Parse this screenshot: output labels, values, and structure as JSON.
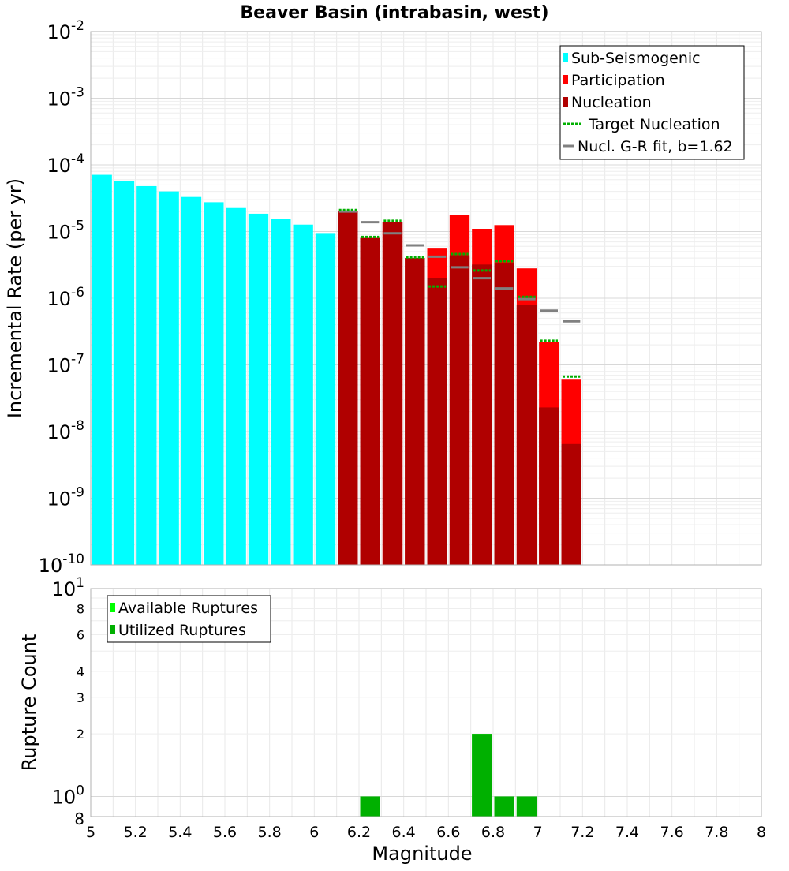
{
  "chart_data": [
    {
      "type": "bar",
      "title": "Beaver Basin (intrabasin, west)",
      "xlabel": "",
      "ylabel": "Incremental Rate (per yr)",
      "xlim": [
        5,
        8
      ],
      "ylim": [
        1e-10,
        0.01
      ],
      "yscale": "log",
      "bin_width": 0.1,
      "grid": true,
      "legend_position": "top-right",
      "y_ticks": [
        {
          "base": "10",
          "exp": "-10"
        },
        {
          "base": "10",
          "exp": "-9"
        },
        {
          "base": "10",
          "exp": "-8"
        },
        {
          "base": "10",
          "exp": "-7"
        },
        {
          "base": "10",
          "exp": "-6"
        },
        {
          "base": "10",
          "exp": "-5"
        },
        {
          "base": "10",
          "exp": "-4"
        },
        {
          "base": "10",
          "exp": "-3"
        },
        {
          "base": "10",
          "exp": "-2"
        }
      ],
      "legend": [
        {
          "label": "Sub-Seismogenic",
          "kind": "bar",
          "color": "#00ffff"
        },
        {
          "label": "Participation",
          "kind": "bar",
          "color": "#ff0000"
        },
        {
          "label": "Nucleation",
          "kind": "bar",
          "color": "#b00000"
        },
        {
          "label": "Target Nucleation",
          "kind": "dotted",
          "color": "#00b000"
        },
        {
          "label": "Nucl. G-R fit, b=1.62",
          "kind": "line",
          "color": "#808080"
        }
      ],
      "series": [
        {
          "name": "Sub-Seismogenic",
          "color": "#00ffff",
          "x": [
            5.05,
            5.15,
            5.25,
            5.35,
            5.45,
            5.55,
            5.65,
            5.75,
            5.85,
            5.95,
            6.05
          ],
          "values": [
            7.1e-05,
            5.8e-05,
            4.8e-05,
            4e-05,
            3.3e-05,
            2.75e-05,
            2.25e-05,
            1.85e-05,
            1.55e-05,
            1.27e-05,
            9.5e-06
          ]
        },
        {
          "name": "Participation",
          "color": "#ff0000",
          "x": [
            6.15,
            6.25,
            6.35,
            6.45,
            6.55,
            6.65,
            6.75,
            6.85,
            6.95,
            7.05,
            7.15
          ],
          "values": [
            2e-05,
            8e-06,
            1.4e-05,
            4e-06,
            5.7e-06,
            1.75e-05,
            1.1e-05,
            1.25e-05,
            2.8e-06,
            2.2e-07,
            6e-08
          ]
        },
        {
          "name": "Nucleation",
          "color": "#b00000",
          "x": [
            6.15,
            6.25,
            6.35,
            6.45,
            6.55,
            6.65,
            6.75,
            6.85,
            6.95,
            7.05,
            7.15
          ],
          "values": [
            2e-05,
            8e-06,
            1.4e-05,
            4e-06,
            2e-06,
            4.4e-06,
            3.2e-06,
            3.4e-06,
            8e-07,
            2.3e-08,
            6.5e-09
          ]
        },
        {
          "name": "Target Nucleation",
          "color": "#00b000",
          "x": [
            6.15,
            6.25,
            6.35,
            6.45,
            6.55,
            6.65,
            6.75,
            6.85,
            6.95,
            7.05,
            7.15
          ],
          "values": [
            2.1e-05,
            8.3e-06,
            1.45e-05,
            4.1e-06,
            1.5e-06,
            4.6e-06,
            2.6e-06,
            3.6e-06,
            1.05e-06,
            2.3e-07,
            6.7e-08
          ]
        },
        {
          "name": "Nucl. G-R fit, b=1.62",
          "color": "#808080",
          "x": [
            6.15,
            6.25,
            6.35,
            6.45,
            6.55,
            6.65,
            6.75,
            6.85,
            6.95,
            7.05,
            7.15
          ],
          "values": [
            2e-05,
            1.38e-05,
            9.4e-06,
            6.2e-06,
            4.2e-06,
            2.9e-06,
            2e-06,
            1.4e-06,
            9.7e-07,
            6.5e-07,
            4.5e-07
          ]
        }
      ]
    },
    {
      "type": "bar",
      "title": "",
      "xlabel": "Magnitude",
      "ylabel": "Rupture Count",
      "xlim": [
        5,
        8
      ],
      "ylim": [
        0.8,
        10
      ],
      "yscale": "log",
      "bin_width": 0.1,
      "grid": true,
      "legend_position": "top-left",
      "x_tick_labels": [
        "5",
        "5.2",
        "5.4",
        "5.6",
        "5.8",
        "6",
        "6.2",
        "6.4",
        "6.6",
        "6.8",
        "7",
        "7.2",
        "7.4",
        "7.6",
        "7.8",
        "8"
      ],
      "y_minor_tick_labels": [
        "8",
        "6",
        "4",
        "3",
        "2",
        "8"
      ],
      "y_major_ticks": [
        {
          "base": "10",
          "exp": "1"
        },
        {
          "base": "10",
          "exp": "0"
        }
      ],
      "legend": [
        {
          "label": "Available Ruptures",
          "kind": "bar",
          "color": "#00ff00"
        },
        {
          "label": "Utilized Ruptures",
          "kind": "bar",
          "color": "#00b000"
        }
      ],
      "series": [
        {
          "name": "Available Ruptures",
          "color": "#00ff00",
          "x": [
            6.25,
            6.75,
            6.85,
            6.95
          ],
          "values": [
            1,
            2,
            1,
            1
          ]
        },
        {
          "name": "Utilized Ruptures",
          "color": "#00b000",
          "x": [
            6.25,
            6.75,
            6.85,
            6.95
          ],
          "values": [
            1,
            2,
            1,
            1
          ]
        }
      ]
    }
  ]
}
